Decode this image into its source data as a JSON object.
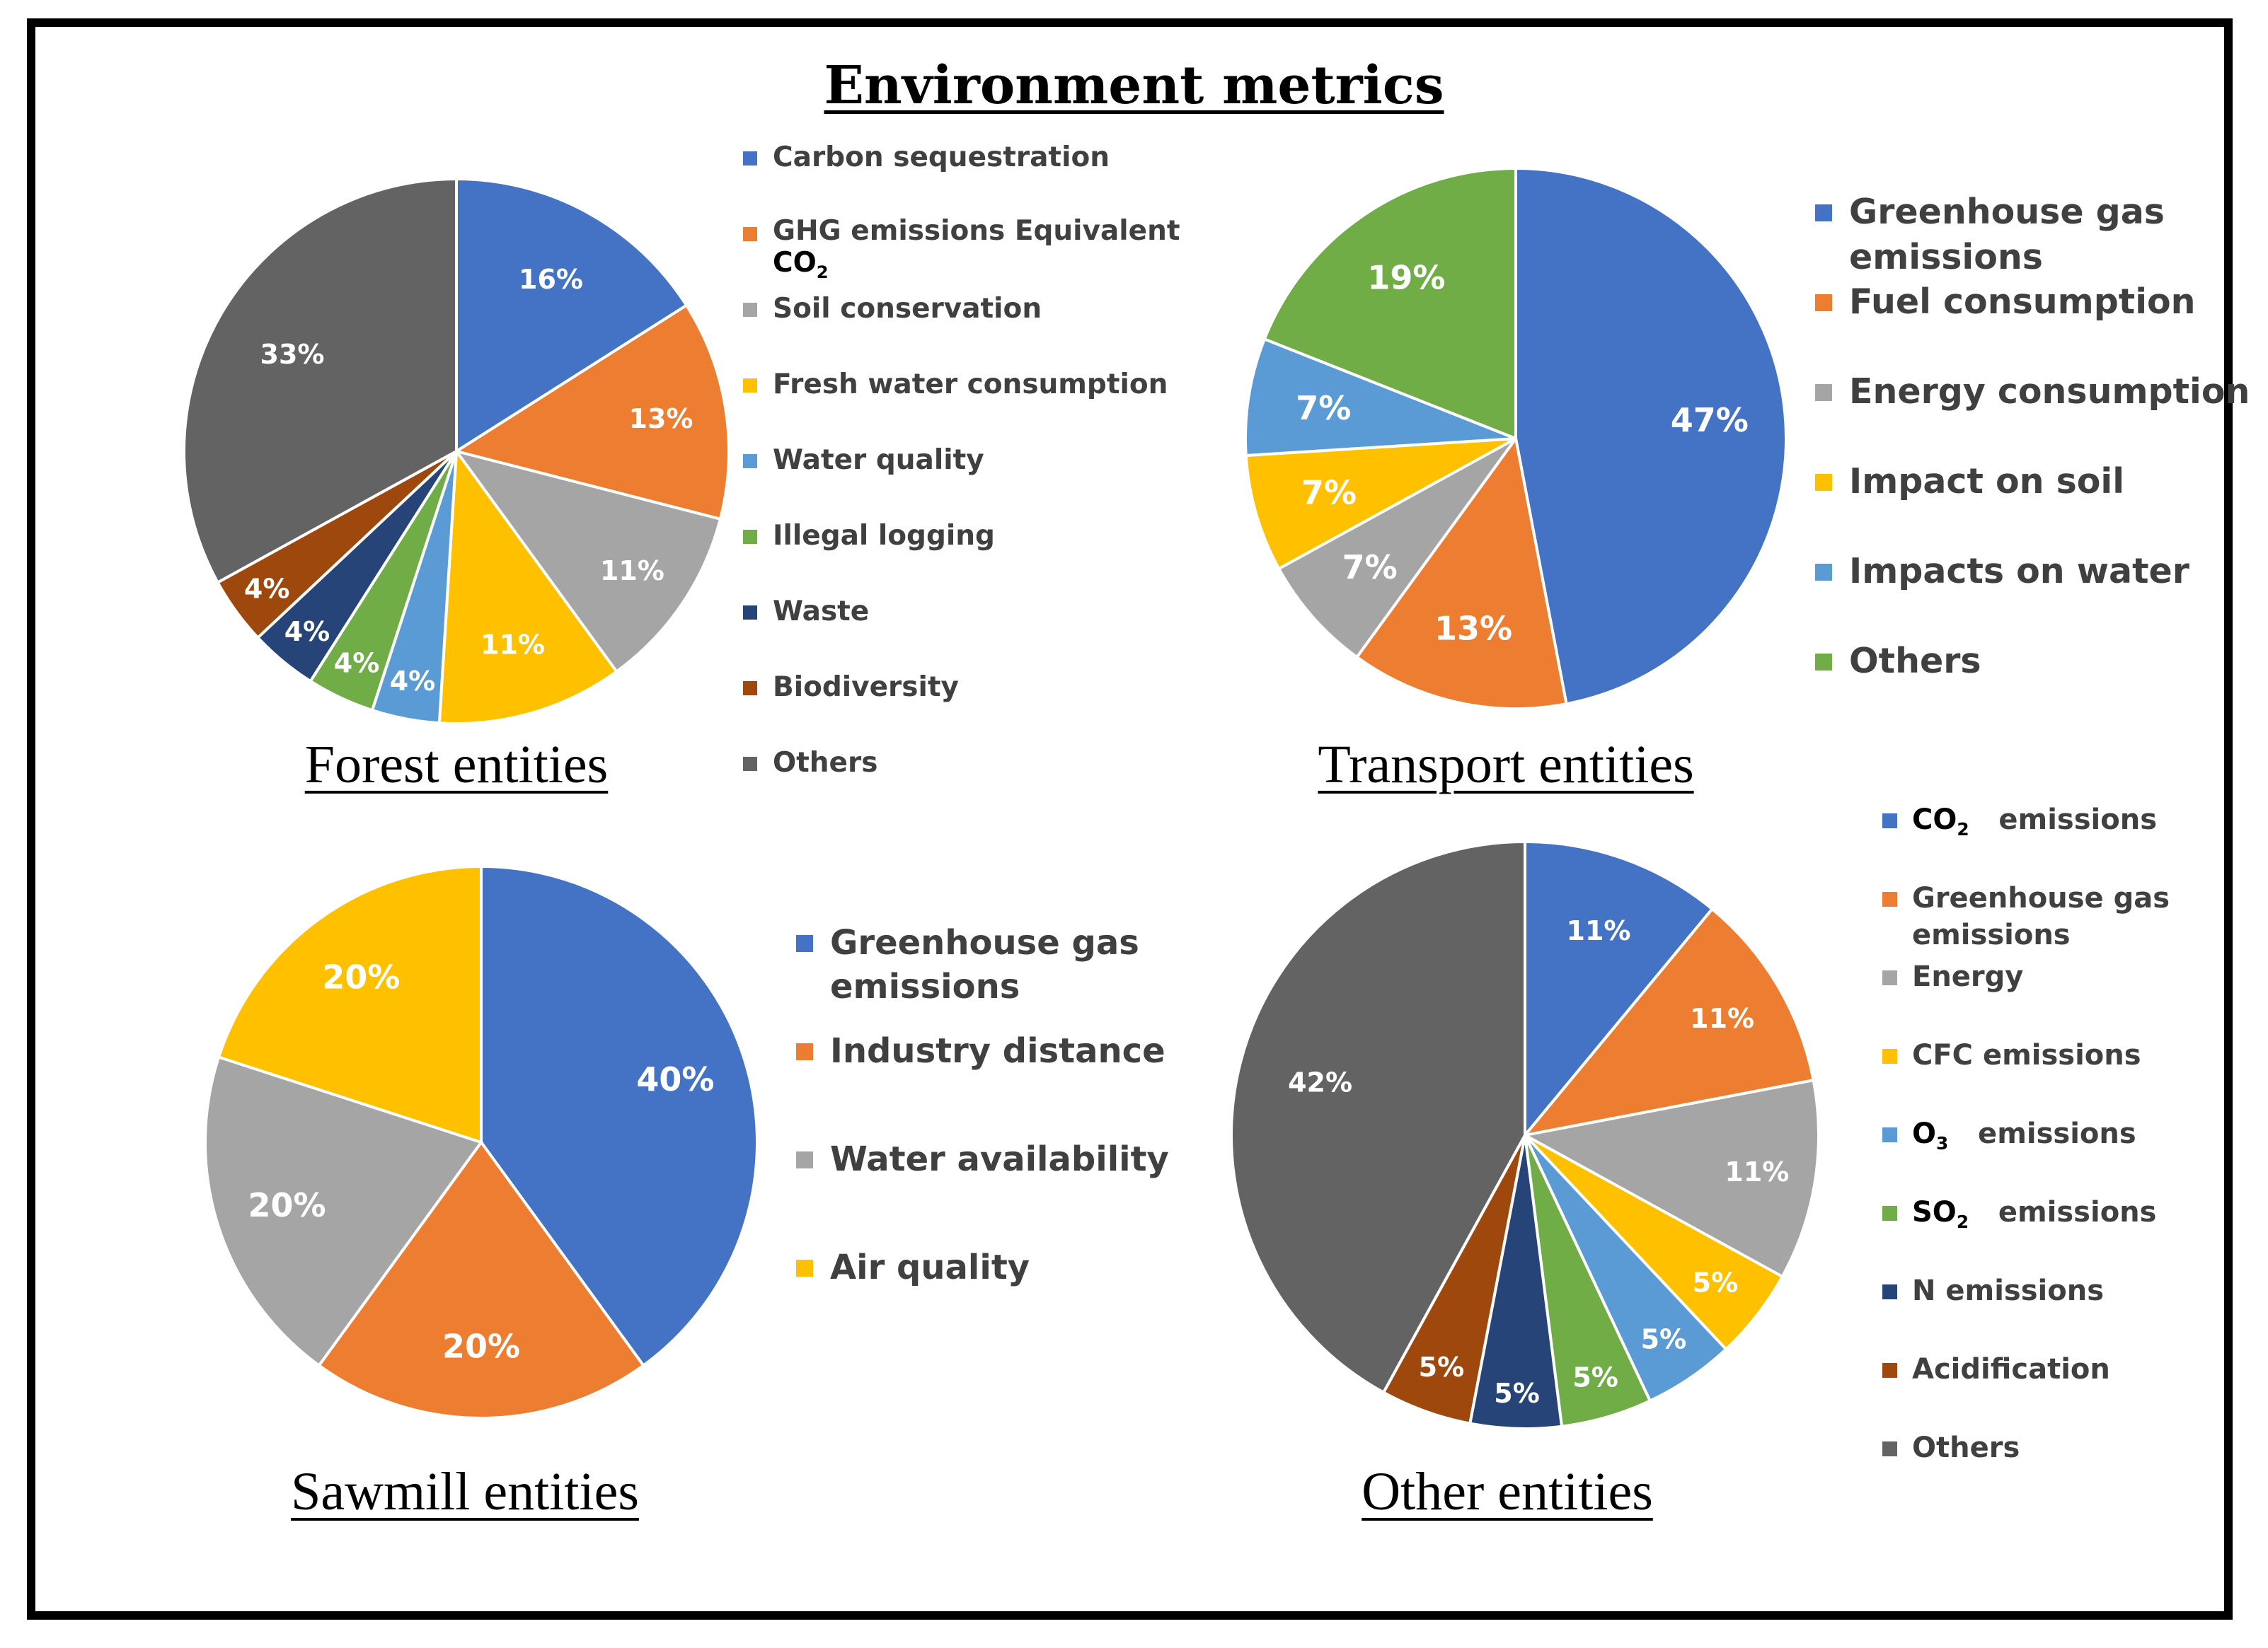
{
  "title": "Environment metrics",
  "chart_data": [
    {
      "type": "pie",
      "title": "Forest entities",
      "categories": [
        "Carbon sequestration",
        "GHG emissions Equivalent CO2",
        "Soil conservation",
        "Fresh water consumption",
        "Water quality",
        "Illegal logging",
        "Waste",
        "Biodiversity",
        "Others"
      ],
      "values": [
        16,
        13,
        11,
        11,
        4,
        4,
        4,
        4,
        33
      ],
      "data_labels": [
        "16%",
        "13%",
        "11%",
        "11%",
        "4%",
        "4%",
        "4%",
        "4%",
        "33%"
      ],
      "colors": [
        "#4472c4",
        "#ed7d31",
        "#a5a5a5",
        "#ffc000",
        "#5b9bd5",
        "#70ad47",
        "#264478",
        "#9e480e",
        "#636363"
      ],
      "legend": [
        {
          "text": "Carbon sequestration"
        },
        {
          "text": "GHG emissions Equivalent",
          "chem": "CO",
          "sub": "2"
        },
        {
          "text": "Soil conservation"
        },
        {
          "text": "Fresh water consumption"
        },
        {
          "text": "Water quality"
        },
        {
          "text": "Illegal logging"
        },
        {
          "text": "Waste"
        },
        {
          "text": "Biodiversity"
        },
        {
          "text": "Others"
        }
      ],
      "legend_position": "right"
    },
    {
      "type": "pie",
      "title": "Transport entities",
      "categories": [
        "Greenhouse gas emissions",
        "Fuel consumption",
        "Energy consumption",
        "Impact on soil",
        "Impacts on water",
        "Others"
      ],
      "values": [
        47,
        13,
        7,
        7,
        7,
        19
      ],
      "data_labels": [
        "47%",
        "13%",
        "7%",
        "7%",
        "7%",
        "19%"
      ],
      "colors": [
        "#4472c4",
        "#ed7d31",
        "#a5a5a5",
        "#ffc000",
        "#5b9bd5",
        "#70ad47"
      ],
      "legend": [
        {
          "line1": "Greenhouse gas",
          "line2": "emissions"
        },
        {
          "text": "Fuel consumption"
        },
        {
          "text": "Energy consumption"
        },
        {
          "text": "Impact on soil"
        },
        {
          "text": "Impacts on water"
        },
        {
          "text": "Others"
        }
      ],
      "legend_position": "right"
    },
    {
      "type": "pie",
      "title": "Sawmill entities",
      "categories": [
        "Greenhouse gas emissions",
        "Industry distance",
        "Water availability",
        "Air quality"
      ],
      "values": [
        40,
        20,
        20,
        20
      ],
      "data_labels": [
        "40%",
        "20%",
        "20%",
        "20%"
      ],
      "colors": [
        "#4472c4",
        "#ed7d31",
        "#a5a5a5",
        "#ffc000"
      ],
      "legend": [
        {
          "line1": "Greenhouse gas",
          "line2": "emissions"
        },
        {
          "text": "Industry distance"
        },
        {
          "text": "Water availability"
        },
        {
          "text": "Air quality"
        }
      ],
      "legend_position": "right"
    },
    {
      "type": "pie",
      "title": "Other entities",
      "categories": [
        "CO2 emissions",
        "Greenhouse gas emissions",
        "Energy",
        "CFC emissions",
        "O3 emissions",
        "SO2 emissions",
        "N emissions",
        "Acidification",
        "Others"
      ],
      "values": [
        11,
        11,
        11,
        5,
        5,
        5,
        5,
        5,
        42
      ],
      "data_labels": [
        "11%",
        "11%",
        "11%",
        "5%",
        "5%",
        "5%",
        "5%",
        "5%",
        "42%"
      ],
      "colors": [
        "#4472c4",
        "#ed7d31",
        "#a5a5a5",
        "#ffc000",
        "#5b9bd5",
        "#70ad47",
        "#264478",
        "#9e480e",
        "#636363"
      ],
      "legend": [
        {
          "chem": "CO",
          "sub": "2",
          "text": "emissions"
        },
        {
          "line1": "Greenhouse gas",
          "line2": "emissions"
        },
        {
          "text": "Energy"
        },
        {
          "text": "CFC emissions"
        },
        {
          "chem": "O",
          "sub": "3",
          "text": "emissions"
        },
        {
          "chem": "SO",
          "sub": "2",
          "text": "emissions"
        },
        {
          "text": "N emissions"
        },
        {
          "text": "Acidification"
        },
        {
          "text": "Others"
        }
      ],
      "legend_position": "right"
    }
  ]
}
